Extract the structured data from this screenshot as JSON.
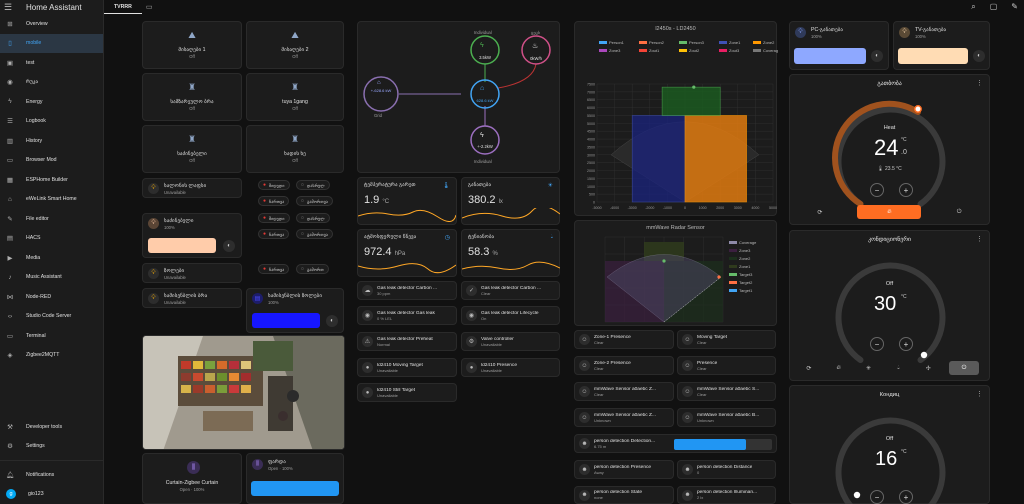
{
  "app": {
    "title": "Home Assistant"
  },
  "sidebar": {
    "items": [
      {
        "label": "Overview",
        "icon": "⊞"
      },
      {
        "label": "mobile",
        "icon": "▯"
      },
      {
        "label": "test",
        "icon": "▣"
      },
      {
        "label": "რუკა",
        "icon": "◉"
      },
      {
        "label": "Energy",
        "icon": "ϟ"
      },
      {
        "label": "Logbook",
        "icon": "☰"
      },
      {
        "label": "History",
        "icon": "▥"
      },
      {
        "label": "Browser Mod",
        "icon": "▭"
      },
      {
        "label": "ESPHome Builder",
        "icon": "▦"
      },
      {
        "label": "eWeLink Smart Home",
        "icon": "⌂"
      },
      {
        "label": "File editor",
        "icon": "✎"
      },
      {
        "label": "HACS",
        "icon": "▤"
      },
      {
        "label": "Media",
        "icon": "▶"
      },
      {
        "label": "Music Assistant",
        "icon": "♪"
      },
      {
        "label": "Node-RED",
        "icon": "⋈"
      },
      {
        "label": "Studio Code Server",
        "icon": "‹›"
      },
      {
        "label": "Terminal",
        "icon": "▭"
      },
      {
        "label": "Zigbee2MQTT",
        "icon": "◈"
      }
    ],
    "developer_tools": "Developer tools",
    "settings": "Settings",
    "notifications": "Notifications",
    "user": "gio123",
    "user_initial": "g"
  },
  "tabs": {
    "active": "TVRRR"
  },
  "lights": [
    {
      "name": "მისაღები 1",
      "state": "Off"
    },
    {
      "name": "მისაღები 2",
      "state": "Off"
    },
    {
      "name": "სამზარეულო ბრა",
      "state": "Off"
    },
    {
      "name": "tuya 1gang",
      "state": "Off"
    },
    {
      "name": "საძინებელი",
      "state": "Off"
    },
    {
      "name": "ხადის ხე",
      "state": "Off"
    }
  ],
  "small_tiles": [
    {
      "name": "სალონის ლაფსი",
      "state": "Unavailable"
    },
    {
      "name": "ზოლები",
      "state": "Unavailable"
    },
    {
      "name": "სამისენბლის ბრა",
      "state": "Unavailable"
    }
  ],
  "bedroom_light": {
    "name": "საძინებელი",
    "state": "100%",
    "color": "#ffccaa"
  },
  "led_light": {
    "name": "სამისენბლის ზოლები",
    "state": "100%",
    "color": "#1616ff"
  },
  "pills": [
    "შიდედი",
    "დასრულ",
    "ჩართვა",
    "გამორთვა",
    "შიდედი",
    "დასრულ",
    "ჩართვა",
    "გამორთვა",
    "ჩართვა",
    "გამორთ"
  ],
  "curtains": [
    {
      "name": "Curtain-Zigbee Curtain",
      "state": "Open · 100%"
    },
    {
      "name": "ფარდა",
      "state": "Open · 100%"
    }
  ],
  "energy": {
    "grid": "Grid",
    "grid_value": "+-628.6 kW",
    "home_value": "628.6 kW",
    "solar_label": "Individual",
    "solar_value": "3.5kW",
    "gas_label": "ცეცხ",
    "gas_value": "0kW/h",
    "bottom_label": "Individual",
    "bottom_value": "+-2.2kW"
  },
  "sensors": [
    {
      "name": "ტემპერატურა გარეთ",
      "value": "1.9",
      "unit": "°C"
    },
    {
      "name": "განათება",
      "value": "380.2",
      "unit": "lx"
    },
    {
      "name": "ატმოსფერული წნევა",
      "value": "972.4",
      "unit": "hPa"
    },
    {
      "name": "ტენიანობა",
      "value": "58.3",
      "unit": "%"
    }
  ],
  "entities_mid": [
    {
      "name": "Gas leak detector Carbon ...",
      "state": "30 ppm"
    },
    {
      "name": "Gas leak detector Carbon ...",
      "state": "Clear"
    },
    {
      "name": "Gas leak detector Gas leak",
      "state": "0 % LEL"
    },
    {
      "name": "Gas leak detector Lifecycle",
      "state": "On"
    },
    {
      "name": "Gas leak detector Preheat",
      "state": "Normal"
    },
    {
      "name": "Valve controller",
      "state": "Unavailable"
    },
    {
      "name": "ld2410 Moving Target",
      "state": "Unavailable"
    },
    {
      "name": "ld2410 Presence",
      "state": "Unavailable"
    },
    {
      "name": "ld2410 Still Target",
      "state": "Unavailable"
    }
  ],
  "chart1": {
    "title": "l2450s - LD2450",
    "legend": [
      "Person1",
      "Person2",
      "Person3",
      "Zone1",
      "Zone2",
      "Zone3",
      "Zout1",
      "Zout2",
      "Zout3",
      "Coverage"
    ],
    "x_ticks": [
      "-5000",
      "-4000",
      "-3000",
      "-2000",
      "-1000",
      "0",
      "1000",
      "2000",
      "3000",
      "4000",
      "5000"
    ],
    "y_ticks": [
      "0",
      "500",
      "1000",
      "1500",
      "2000",
      "2500",
      "3000",
      "3500",
      "4000",
      "4500",
      "5000",
      "5500",
      "6000",
      "6500",
      "7000",
      "7500"
    ]
  },
  "chart2": {
    "title": "mmWave Radar Sensor",
    "legend": [
      "Coverage",
      "Zone3",
      "Zone2",
      "Zone1",
      "Target3",
      "Target2",
      "Target1"
    ]
  },
  "entities_right": [
    {
      "name": "Zone-1 Presence",
      "state": "Clear"
    },
    {
      "name": "Moving Target",
      "state": "Clear"
    },
    {
      "name": "Zone-2 Presence",
      "state": "Clear"
    },
    {
      "name": "Presence",
      "state": "Clear"
    },
    {
      "name": "mmWave Sensor a0aebc Z...",
      "state": "Clear"
    },
    {
      "name": "mmWave Sensor a0aebc S...",
      "state": "Clear"
    },
    {
      "name": "mmWave Sensor a0aebc Z...",
      "state": "Unknown"
    },
    {
      "name": "mmWave Sensor a0aebc B...",
      "state": "Unknown"
    }
  ],
  "person_detection": [
    {
      "name": "person detection Detection...",
      "state": "6.75 m"
    },
    {
      "name": "person detection Presence",
      "state": "Away"
    },
    {
      "name": "person detection Distance",
      "state": "0"
    },
    {
      "name": "person detection State",
      "state": "none"
    },
    {
      "name": "person detection Illuminan...",
      "state": "2 lx"
    }
  ],
  "pc": {
    "name": "PC-განათება",
    "state": "100%",
    "color": "#8ea8ff"
  },
  "tv": {
    "name": "TV-განათება",
    "state": "100%",
    "color": "#ffdcb4"
  },
  "thermostats": [
    {
      "name": "გათბობა",
      "mode": "Heat",
      "target": "24",
      "decimal": ".0",
      "unit": "°C",
      "current": "23.5 °C"
    },
    {
      "name": "კონდიციონერი",
      "mode": "Off",
      "target": "30",
      "unit": "°C"
    },
    {
      "name": "Кондиц",
      "mode": "Off",
      "target": "16",
      "unit": "°C"
    }
  ],
  "colors": {
    "accent": "#42a5f5",
    "heat": "#ff6d22",
    "card": "#1c1c1c"
  }
}
